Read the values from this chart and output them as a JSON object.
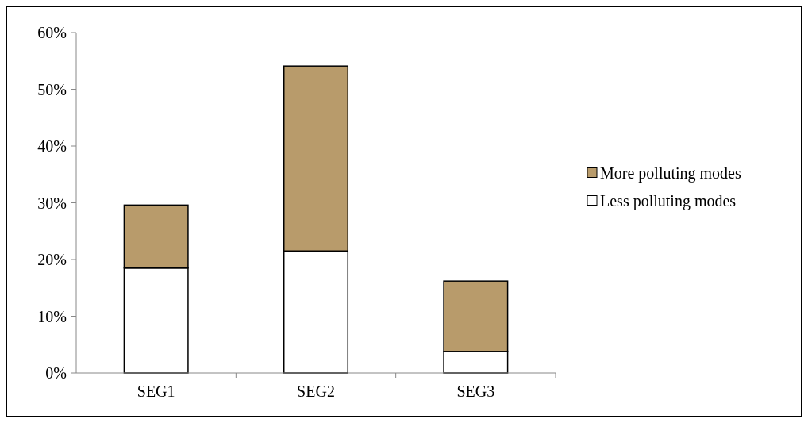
{
  "chart_data": {
    "type": "bar",
    "stacked": true,
    "categories": [
      "SEG1",
      "SEG2",
      "SEG3"
    ],
    "series": [
      {
        "name": "Less polluting modes",
        "color": "#ffffff",
        "values": [
          18.5,
          21.5,
          3.8
        ]
      },
      {
        "name": "More polluting modes",
        "color": "#b89b6b",
        "values": [
          11.1,
          32.6,
          12.4
        ]
      }
    ],
    "ylim": [
      0,
      60
    ],
    "yticks": [
      {
        "value": 0,
        "label": "0%"
      },
      {
        "value": 10,
        "label": "10%"
      },
      {
        "value": 20,
        "label": "20%"
      },
      {
        "value": 30,
        "label": "30%"
      },
      {
        "value": 40,
        "label": "40%"
      },
      {
        "value": 50,
        "label": "50%"
      },
      {
        "value": 60,
        "label": "60%"
      }
    ],
    "grid": false,
    "legend": "right"
  }
}
